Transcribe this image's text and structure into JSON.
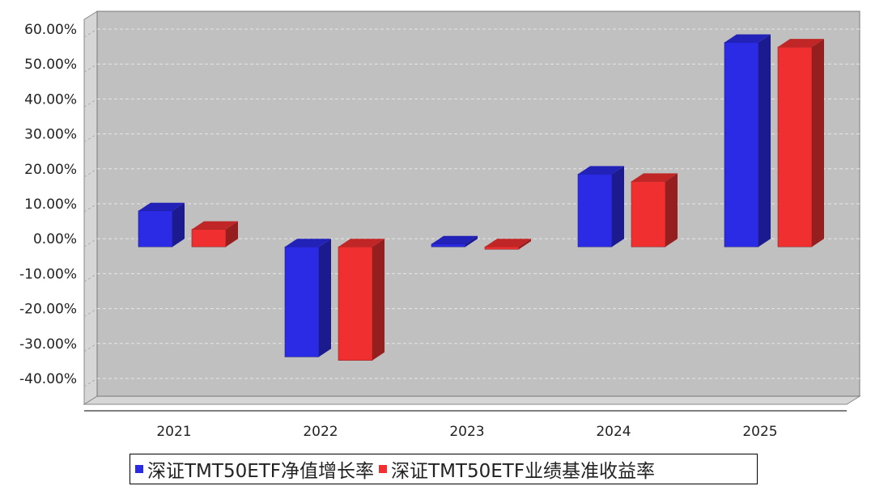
{
  "chart_data": {
    "type": "bar",
    "categories": [
      "2021",
      "2022",
      "2023",
      "2024",
      "2025"
    ],
    "series": [
      {
        "name": "深证TMT50ETF净值增长率",
        "color": "#2b2be6",
        "values": [
          10.3,
          -31.5,
          0.8,
          20.8,
          58.5
        ]
      },
      {
        "name": "深证TMT50ETF业绩基准收益率",
        "color": "#f03030",
        "values": [
          5.0,
          -32.5,
          -0.7,
          18.7,
          57.2
        ]
      }
    ],
    "y_ticks": [
      "60.00%",
      "50.00%",
      "40.00%",
      "30.00%",
      "20.00%",
      "10.00%",
      "0.00%",
      "-10.00%",
      "-20.00%",
      "-30.00%",
      "-40.00%"
    ],
    "ylim": [
      -40,
      60
    ],
    "grid": true,
    "legend_position": "bottom",
    "background_color": "#c0c0c0"
  }
}
